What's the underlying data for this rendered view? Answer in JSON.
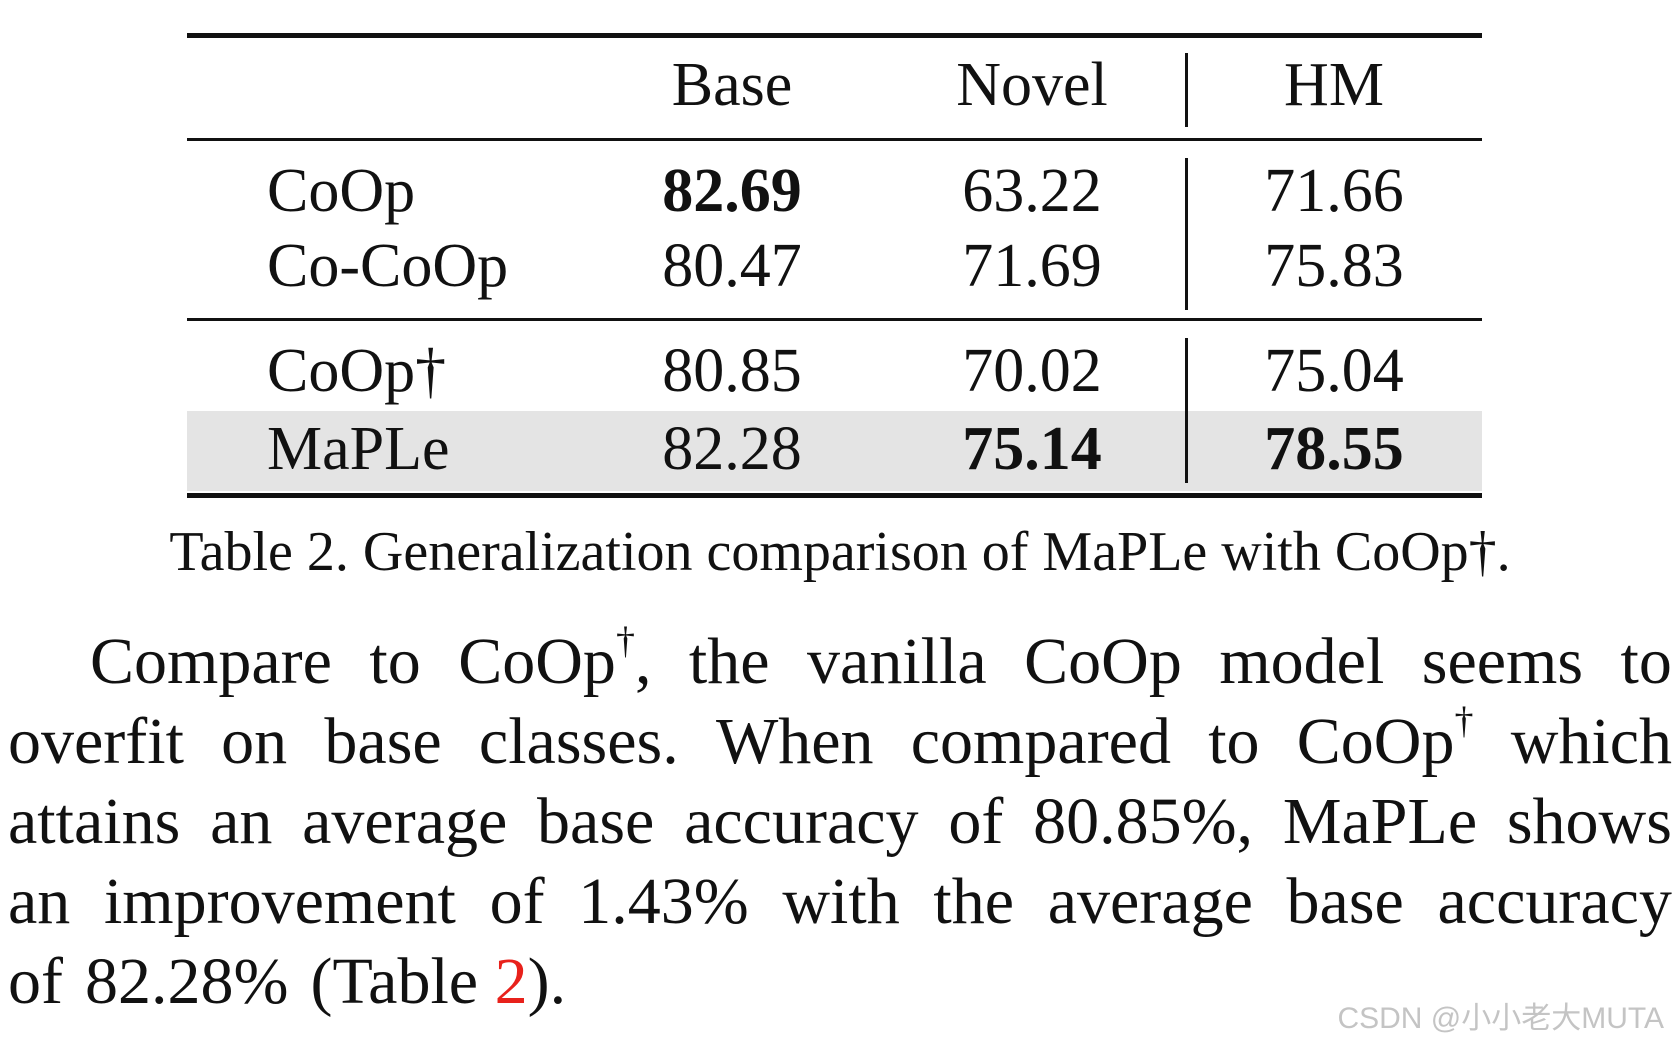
{
  "table": {
    "headers": [
      "",
      "Base",
      "Novel",
      "HM"
    ],
    "rows": [
      {
        "method": "CoOp",
        "base": "82.69",
        "novel": "63.22",
        "hm": "71.66",
        "bold": [
          "base"
        ],
        "highlighted": false
      },
      {
        "method": "Co-CoOp",
        "base": "80.47",
        "novel": "71.69",
        "hm": "75.83",
        "bold": [],
        "highlighted": false
      },
      {
        "method": "CoOp†",
        "base": "80.85",
        "novel": "70.02",
        "hm": "75.04",
        "bold": [],
        "highlighted": false
      },
      {
        "method": "MaPLe",
        "base": "82.28",
        "novel": "75.14",
        "hm": "78.55",
        "bold": [
          "novel",
          "hm"
        ],
        "highlighted": true
      }
    ],
    "highlight_color": "#e4e4e4"
  },
  "caption": "Table 2. Generalization comparison of MaPLe with CoOp†.",
  "paragraph": {
    "lines": [
      [
        "Compare",
        "to",
        "CoOp",
        "†",
        ",",
        "the",
        "vanilla",
        "CoOp",
        "model",
        "seems",
        "to"
      ],
      [
        "overfit",
        "on",
        "base",
        "classes.",
        "When",
        "compared",
        "to",
        "CoOp",
        "†",
        "which"
      ],
      [
        "attains",
        "an",
        "average",
        "base",
        "accuracy",
        "of",
        "80.85%,",
        "MaPLe",
        "shows"
      ],
      [
        "an",
        "improvement",
        "of",
        "1.43%",
        "with",
        "the",
        "average",
        "base",
        "accuracy"
      ],
      [
        "of",
        "82.28%",
        "(Table",
        "2",
        ")."
      ]
    ],
    "ref_color": "#e8211b"
  },
  "watermark": "CSDN @小小老大MUTA"
}
